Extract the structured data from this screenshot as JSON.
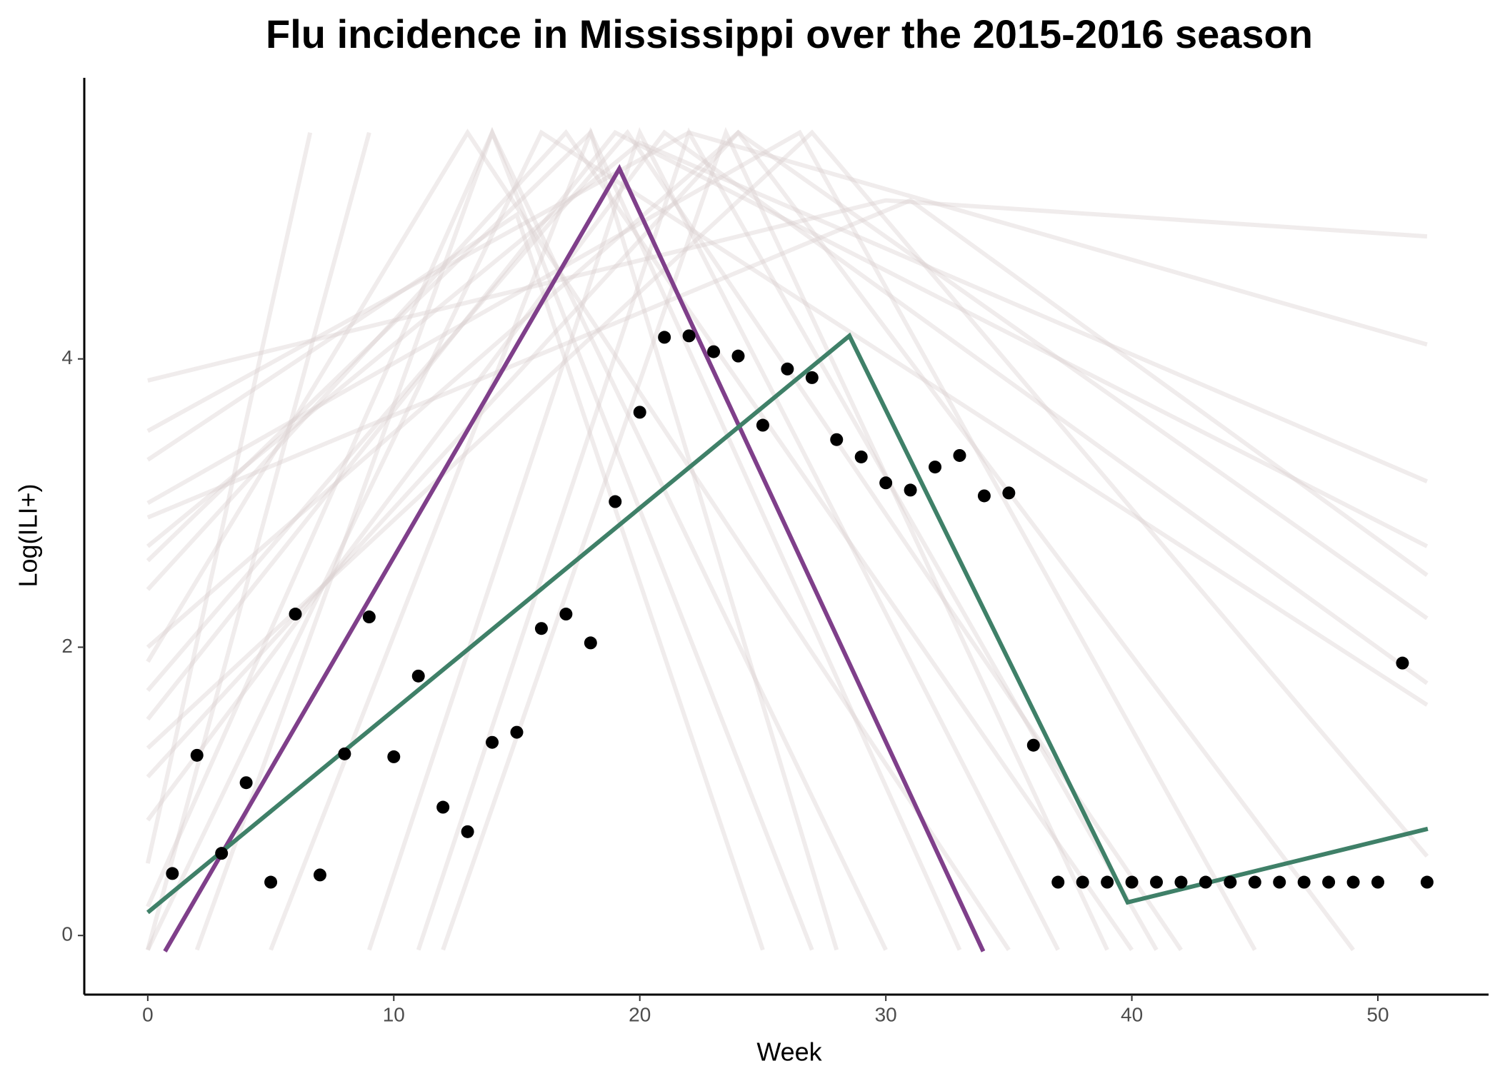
{
  "chart_data": {
    "type": "line",
    "title": "Flu incidence in Mississippi over the 2015-2016 season",
    "x_label": "Week",
    "y_label": "Log(ILI+)",
    "xlim": [
      -2.58,
      54.5
    ],
    "ylim": [
      -0.41,
      5.95
    ],
    "xticks": [
      0,
      10,
      20,
      30,
      40,
      50
    ],
    "yticks": [
      0,
      2,
      4
    ],
    "grid": false,
    "background_color": "#d9cfcf",
    "background": [
      {
        "x": [
          0,
          30,
          52
        ],
        "values": [
          3.85,
          5.1,
          4.85
        ]
      },
      {
        "x": [
          0,
          22,
          52
        ],
        "values": [
          3.5,
          5.57,
          4.1
        ]
      },
      {
        "x": [
          0,
          20,
          52
        ],
        "values": [
          2.7,
          5.5,
          3.15
        ]
      },
      {
        "x": [
          0,
          19,
          52
        ],
        "values": [
          1.5,
          5.57,
          2.7
        ]
      },
      {
        "x": [
          0,
          24,
          52
        ],
        "values": [
          1.1,
          5.57,
          2.2
        ]
      },
      {
        "x": [
          0,
          21,
          52
        ],
        "values": [
          0.8,
          5.57,
          1.75
        ]
      },
      {
        "x": [
          0,
          16,
          52
        ],
        "values": [
          -0.1,
          5.57,
          1.6
        ]
      },
      {
        "x": [
          0,
          17,
          40
        ],
        "values": [
          2.4,
          5.57,
          -0.1
        ]
      },
      {
        "x": [
          0,
          13,
          35
        ],
        "values": [
          1.9,
          5.57,
          -0.1
        ]
      },
      {
        "x": [
          0,
          6.6
        ],
        "values": [
          0.5,
          5.57
        ]
      },
      {
        "x": [
          0,
          9
        ],
        "values": [
          -0.1,
          5.57
        ]
      },
      {
        "x": [
          2,
          14,
          30
        ],
        "values": [
          -0.1,
          5.57,
          -0.1
        ]
      },
      {
        "x": [
          5,
          18,
          33
        ],
        "values": [
          -0.1,
          5.57,
          -0.1
        ]
      },
      {
        "x": [
          9,
          20,
          37
        ],
        "values": [
          -0.1,
          5.57,
          -0.1
        ]
      },
      {
        "x": [
          11,
          22,
          41
        ],
        "values": [
          -0.1,
          5.57,
          -0.1
        ]
      },
      {
        "x": [
          0,
          26.5,
          45
        ],
        "values": [
          3.0,
          5.57,
          -0.1
        ]
      },
      {
        "x": [
          0,
          24,
          49
        ],
        "values": [
          2.0,
          5.57,
          -0.1
        ]
      },
      {
        "x": [
          0,
          27,
          52
        ],
        "values": [
          1.3,
          5.57,
          0.55
        ]
      },
      {
        "x": [
          0,
          15,
          25
        ],
        "values": [
          3.3,
          5.0,
          -0.1
        ]
      },
      {
        "x": [
          0,
          18,
          28
        ],
        "values": [
          2.6,
          5.57,
          -0.1
        ]
      },
      {
        "x": [
          12,
          23.5,
          39
        ],
        "values": [
          -0.1,
          5.57,
          -0.1
        ]
      },
      {
        "x": [
          0,
          19.5,
          42
        ],
        "values": [
          1.7,
          5.57,
          -0.1
        ]
      },
      {
        "x": [
          0,
          14,
          27
        ],
        "values": [
          0.2,
          5.57,
          -0.1
        ]
      },
      {
        "x": [
          0,
          31,
          52
        ],
        "values": [
          2.9,
          5.1,
          2.5
        ]
      }
    ],
    "lines": [
      {
        "color": "#7f3f8a",
        "x": [
          0.7,
          19.17,
          33.96
        ],
        "values": [
          -0.11,
          5.32,
          -0.11
        ]
      },
      {
        "color": "#3f8068",
        "x": [
          0,
          28.52,
          39.83,
          52.03
        ],
        "values": [
          0.16,
          4.16,
          0.23,
          0.74
        ]
      }
    ],
    "points": {
      "color": "#000000",
      "x": [
        1,
        2,
        3,
        4,
        5,
        6,
        7,
        8,
        9,
        10,
        11,
        12,
        13,
        14,
        15,
        16,
        17,
        18,
        19,
        20,
        21,
        22,
        23,
        24,
        25,
        26,
        27,
        28,
        29,
        30,
        31,
        32,
        33,
        34,
        35,
        36,
        37,
        38,
        39,
        40,
        41,
        42,
        43,
        44,
        45,
        46,
        47,
        48,
        49,
        50,
        51,
        52
      ],
      "values": [
        0.43,
        1.25,
        0.57,
        1.06,
        0.37,
        2.23,
        0.42,
        1.26,
        2.21,
        1.24,
        1.8,
        0.89,
        0.72,
        1.34,
        1.41,
        2.13,
        2.23,
        2.03,
        3.01,
        3.63,
        4.15,
        4.16,
        4.05,
        4.02,
        3.54,
        3.93,
        3.87,
        3.44,
        3.32,
        3.14,
        3.09,
        3.25,
        3.33,
        3.05,
        3.07,
        1.32,
        0.37,
        0.37,
        0.37,
        0.37,
        0.37,
        0.37,
        0.37,
        0.37,
        0.37,
        0.37,
        0.37,
        0.37,
        0.37,
        0.37,
        1.89,
        0.37
      ]
    }
  }
}
